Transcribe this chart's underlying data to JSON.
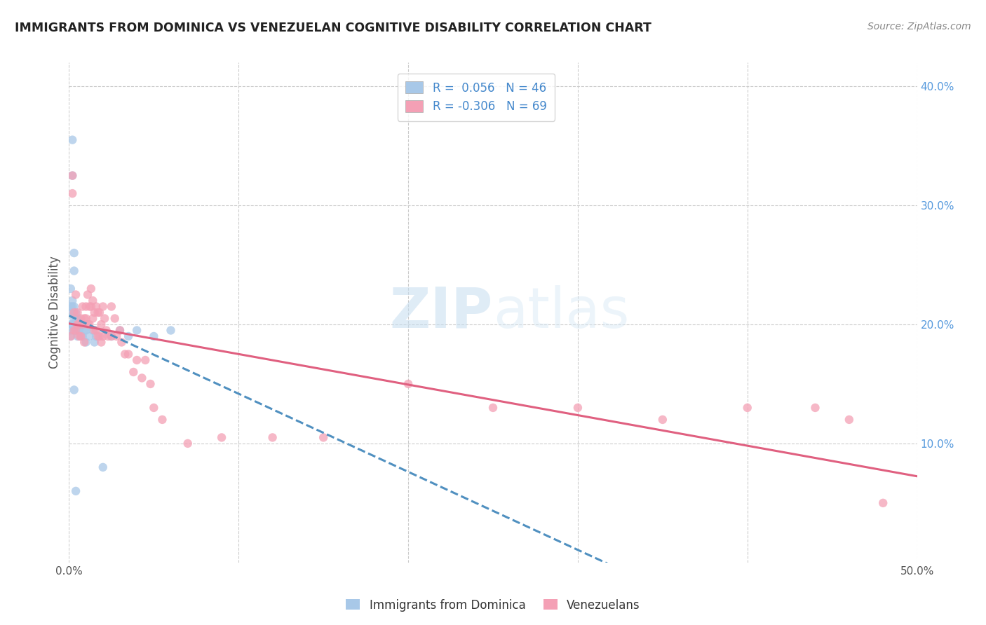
{
  "title": "IMMIGRANTS FROM DOMINICA VS VENEZUELAN COGNITIVE DISABILITY CORRELATION CHART",
  "source": "Source: ZipAtlas.com",
  "ylabel": "Cognitive Disability",
  "xlim": [
    0.0,
    0.5
  ],
  "ylim": [
    0.0,
    0.42
  ],
  "x_ticks": [
    0.0,
    0.1,
    0.2,
    0.3,
    0.4,
    0.5
  ],
  "x_tick_labels": [
    "0.0%",
    "",
    "",
    "",
    "",
    "50.0%"
  ],
  "y_ticks_right": [
    0.1,
    0.2,
    0.3,
    0.4
  ],
  "y_tick_labels_right": [
    "10.0%",
    "20.0%",
    "30.0%",
    "40.0%"
  ],
  "color_blue": "#a8c8e8",
  "color_pink": "#f4a0b5",
  "trendline_blue": "#5090c0",
  "trendline_pink": "#e06080",
  "watermark_zip": "ZIP",
  "watermark_atlas": "atlas",
  "blue_R": 0.056,
  "blue_N": 46,
  "pink_R": -0.306,
  "pink_N": 69,
  "blue_x": [
    0.002,
    0.002,
    0.003,
    0.003,
    0.001,
    0.001,
    0.001,
    0.001,
    0.001,
    0.002,
    0.002,
    0.002,
    0.002,
    0.003,
    0.003,
    0.003,
    0.003,
    0.004,
    0.004,
    0.004,
    0.004,
    0.005,
    0.005,
    0.005,
    0.006,
    0.006,
    0.007,
    0.007,
    0.008,
    0.008,
    0.009,
    0.01,
    0.01,
    0.012,
    0.014,
    0.015,
    0.016,
    0.02,
    0.025,
    0.03,
    0.035,
    0.04,
    0.05,
    0.06,
    0.003,
    0.004
  ],
  "blue_y": [
    0.355,
    0.325,
    0.26,
    0.245,
    0.23,
    0.215,
    0.2,
    0.195,
    0.19,
    0.22,
    0.215,
    0.21,
    0.2,
    0.215,
    0.21,
    0.205,
    0.195,
    0.21,
    0.205,
    0.2,
    0.195,
    0.205,
    0.195,
    0.19,
    0.2,
    0.195,
    0.2,
    0.19,
    0.2,
    0.19,
    0.195,
    0.195,
    0.185,
    0.19,
    0.195,
    0.185,
    0.19,
    0.08,
    0.19,
    0.195,
    0.19,
    0.195,
    0.19,
    0.195,
    0.145,
    0.06
  ],
  "pink_x": [
    0.001,
    0.002,
    0.002,
    0.003,
    0.003,
    0.004,
    0.004,
    0.005,
    0.005,
    0.006,
    0.006,
    0.007,
    0.007,
    0.008,
    0.008,
    0.009,
    0.009,
    0.01,
    0.01,
    0.011,
    0.011,
    0.012,
    0.012,
    0.013,
    0.013,
    0.014,
    0.014,
    0.015,
    0.015,
    0.016,
    0.016,
    0.017,
    0.017,
    0.018,
    0.018,
    0.019,
    0.019,
    0.02,
    0.02,
    0.021,
    0.022,
    0.023,
    0.025,
    0.025,
    0.027,
    0.028,
    0.03,
    0.031,
    0.033,
    0.035,
    0.038,
    0.04,
    0.043,
    0.045,
    0.048,
    0.05,
    0.055,
    0.07,
    0.09,
    0.12,
    0.15,
    0.2,
    0.25,
    0.3,
    0.35,
    0.4,
    0.44,
    0.46,
    0.48
  ],
  "pink_y": [
    0.19,
    0.325,
    0.31,
    0.21,
    0.195,
    0.225,
    0.195,
    0.21,
    0.2,
    0.19,
    0.2,
    0.205,
    0.19,
    0.215,
    0.2,
    0.205,
    0.185,
    0.215,
    0.205,
    0.225,
    0.2,
    0.215,
    0.2,
    0.23,
    0.215,
    0.22,
    0.205,
    0.21,
    0.195,
    0.215,
    0.195,
    0.21,
    0.19,
    0.21,
    0.19,
    0.2,
    0.185,
    0.215,
    0.19,
    0.205,
    0.195,
    0.19,
    0.215,
    0.19,
    0.205,
    0.19,
    0.195,
    0.185,
    0.175,
    0.175,
    0.16,
    0.17,
    0.155,
    0.17,
    0.15,
    0.13,
    0.12,
    0.1,
    0.105,
    0.105,
    0.105,
    0.15,
    0.13,
    0.13,
    0.12,
    0.13,
    0.13,
    0.12,
    0.05
  ]
}
